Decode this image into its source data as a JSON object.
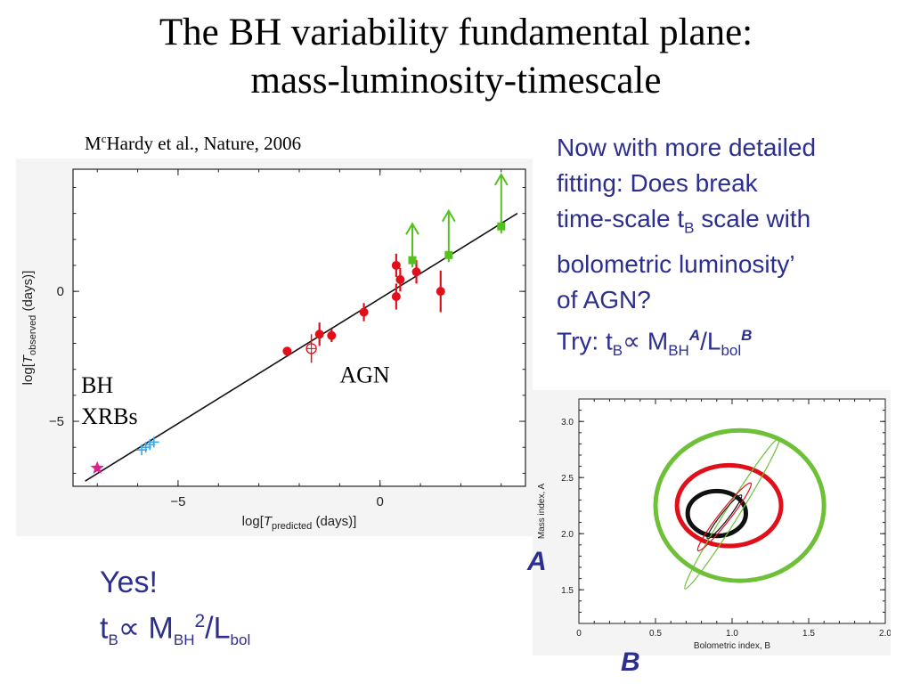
{
  "title": {
    "line1": "The BH variability fundamental plane:",
    "line2": "mass-luminosity-timescale"
  },
  "citation": {
    "prefix": "M",
    "superscript": "c",
    "rest": "Hardy et al., Nature, 2006"
  },
  "chart_data": [
    {
      "type": "scatter",
      "title": "",
      "xlabel_prefix": "log[",
      "xlabel_var": "T",
      "xlabel_sub": "predicted",
      "xlabel_suffix": " (days)]",
      "ylabel_prefix": "log[",
      "ylabel_var": "T",
      "ylabel_sub": "observed",
      "ylabel_suffix": " (days)]",
      "xlim": [
        -7.6,
        3.6
      ],
      "ylim": [
        -7.5,
        4.7
      ],
      "x_ticks": [
        -5,
        0
      ],
      "x_tick_labels": [
        "−5",
        "0"
      ],
      "y_ticks": [
        0,
        -5
      ],
      "y_tick_labels": [
        "0",
        "−5"
      ],
      "fit_line": {
        "x": [
          -7.3,
          3.4
        ],
        "y": [
          -7.3,
          3.0
        ]
      },
      "annotations": [
        {
          "text": "AGN",
          "x": -1.0,
          "y": -3.5
        },
        {
          "text": "BH",
          "x": -7.4,
          "y": -3.9
        },
        {
          "text": "XRBs",
          "x": -7.4,
          "y": -5.1
        }
      ],
      "series": [
        {
          "marker": "circle",
          "color": "#e0101b",
          "points": [
            {
              "x": -2.3,
              "y": -2.3,
              "err": 0.0
            },
            {
              "x": -1.5,
              "y": -1.65,
              "err": 0.45
            },
            {
              "x": -1.2,
              "y": -1.7,
              "err": 0.25
            },
            {
              "x": -0.4,
              "y": -0.8,
              "err": 0.35
            },
            {
              "x": 0.4,
              "y": 1.0,
              "err": 0.45
            },
            {
              "x": 0.5,
              "y": 0.45,
              "err": 0.45
            },
            {
              "x": 0.4,
              "y": -0.2,
              "err": 0.5
            },
            {
              "x": 0.9,
              "y": 0.75,
              "err": 0.45
            },
            {
              "x": 1.5,
              "y": 0.0,
              "err": 0.8
            }
          ]
        },
        {
          "marker": "open-circle-cross",
          "color": "#e0101b",
          "points": [
            {
              "x": -1.7,
              "y": -2.2,
              "err": 0.55
            }
          ]
        },
        {
          "marker": "square-lower-limit",
          "color": "#55c020",
          "points": [
            {
              "x": 0.8,
              "y": 1.2,
              "arrow_top": 2.6
            },
            {
              "x": 1.7,
              "y": 1.4,
              "arrow_top": 3.1
            },
            {
              "x": 3.0,
              "y": 2.5,
              "arrow_top": 4.5
            }
          ]
        },
        {
          "marker": "cross",
          "color": "#38a8e8",
          "points": [
            {
              "x": -5.9,
              "y": -6.1
            },
            {
              "x": -5.7,
              "y": -5.9
            },
            {
              "x": -5.8,
              "y": -6.0
            },
            {
              "x": -5.6,
              "y": -5.8
            }
          ]
        },
        {
          "marker": "star",
          "color": "#e0208a",
          "points": [
            {
              "x": -7.0,
              "y": -6.8
            }
          ]
        }
      ]
    },
    {
      "type": "contour",
      "title": "",
      "xlabel": "Bolometric index, B",
      "ylabel": "Mass index, A",
      "xlim": [
        0,
        2.0
      ],
      "ylim": [
        1.2,
        3.2
      ],
      "x_ticks": [
        0,
        0.5,
        1.0,
        1.5,
        2.0
      ],
      "x_tick_labels": [
        "0",
        "0.5",
        "1.0",
        "1.5",
        "2.0"
      ],
      "y_ticks": [
        1.5,
        2.0,
        2.5,
        3.0
      ],
      "y_tick_labels": [
        "1.5",
        "2.0",
        "2.5",
        "3.0"
      ],
      "contours": [
        {
          "color": "#6ec038",
          "cx": 1.05,
          "cy": 2.25,
          "rx": 0.55,
          "ry": 0.67,
          "rot": 0
        },
        {
          "color": "#e0101b",
          "cx": 0.98,
          "cy": 2.25,
          "rx": 0.34,
          "ry": 0.36,
          "rot": 0
        },
        {
          "color": "#111111",
          "cx": 0.9,
          "cy": 2.18,
          "rx": 0.19,
          "ry": 0.2,
          "rot": 0
        },
        {
          "color": "#6ec038",
          "cx": 1.0,
          "cy": 2.18,
          "rx": 0.58,
          "ry": 0.06,
          "rot": -58
        },
        {
          "color": "#e0101b",
          "cx": 0.95,
          "cy": 2.15,
          "rx": 0.28,
          "ry": 0.05,
          "rot": -52
        },
        {
          "color": "#111111",
          "cx": 0.95,
          "cy": 2.15,
          "rx": 0.18,
          "ry": 0.035,
          "rot": -52
        }
      ]
    }
  ],
  "right_text": {
    "line1": "Now with more detailed",
    "line2": "fitting:  Does break",
    "line3a": "time-scale t",
    "line3sub": "B",
    "line3b": " scale with",
    "line4": "bolometric luminosity’",
    "line5": "of AGN?",
    "line6a": "Try: t",
    "line6sub1": "B",
    "line6prop": "∝ M",
    "line6sub2": "BH",
    "line6sup1": "A",
    "line6mid": "/L",
    "line6sub3": "bol",
    "line6sup2": "B"
  },
  "answer": {
    "line1": "Yes!",
    "t": "t",
    "sub1": "B",
    "prop": "∝ M",
    "sub2": "BH",
    "sup": "2",
    "slash": "/L",
    "sub3": "bol"
  },
  "axis_labels": {
    "A": "A",
    "B": "B"
  }
}
